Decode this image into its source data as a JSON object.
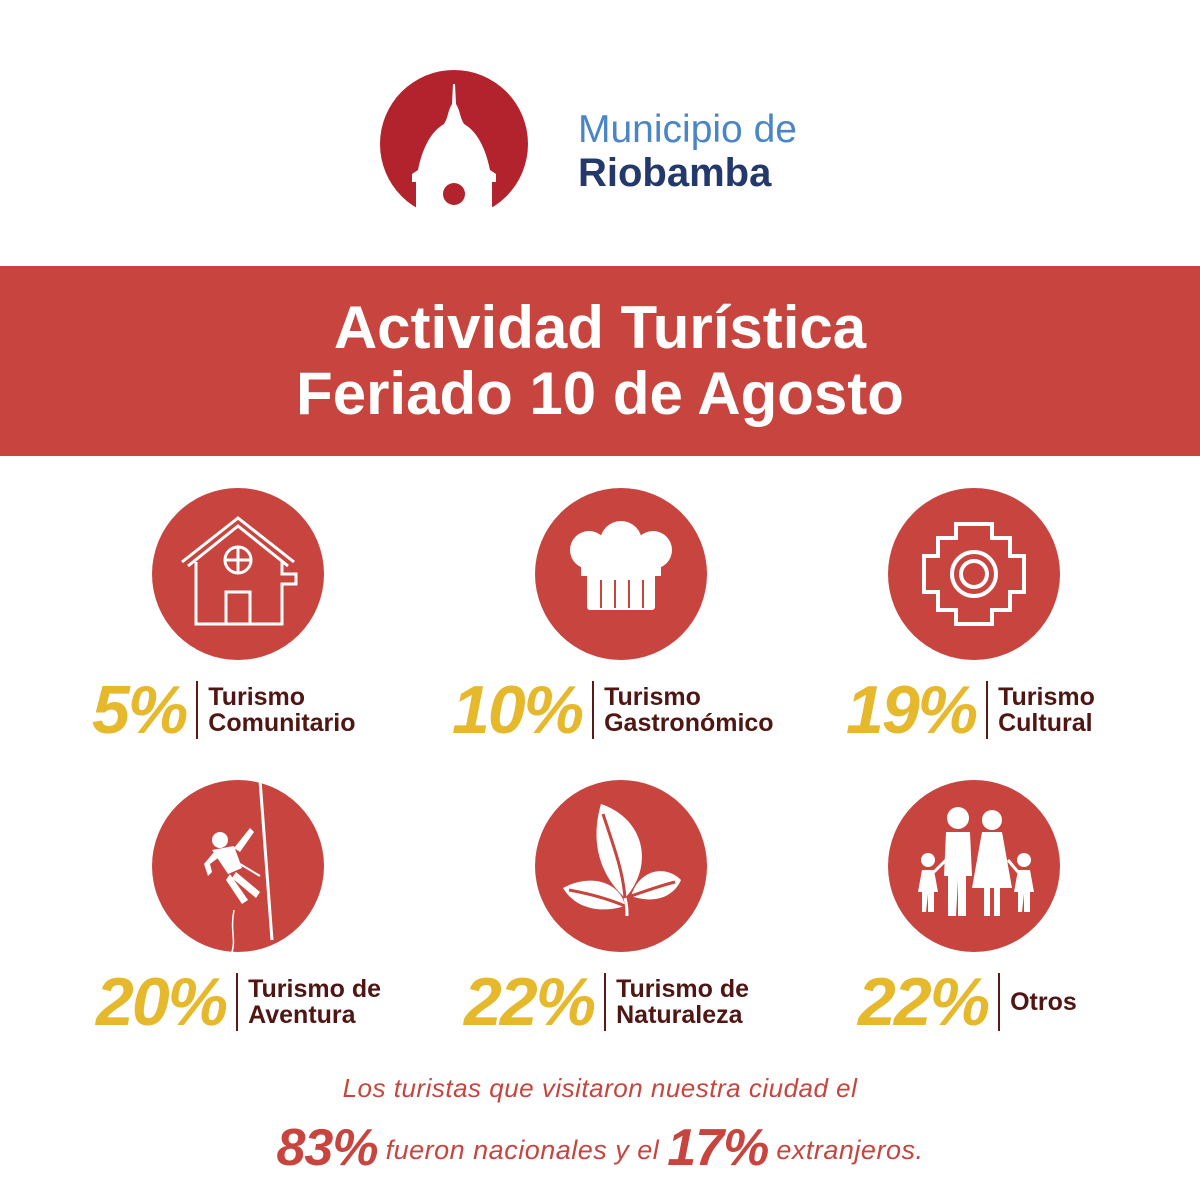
{
  "brand": {
    "line1": "Municipio de",
    "line2": "Riobamba"
  },
  "banner": {
    "line1": "Actividad Turística",
    "line2": "Feriado 10 de Agosto"
  },
  "stats": [
    {
      "percent": "5%",
      "label1": "Turismo",
      "label2": "Comunitario",
      "icon": "house-icon"
    },
    {
      "percent": "10%",
      "label1": "Turismo",
      "label2": "Gastronómico",
      "icon": "chef-hat-icon"
    },
    {
      "percent": "19%",
      "label1": "Turismo",
      "label2": "Cultural",
      "icon": "chakana-icon"
    },
    {
      "percent": "20%",
      "label1": "Turismo de",
      "label2": "Aventura",
      "icon": "climber-icon"
    },
    {
      "percent": "22%",
      "label1": "Turismo de",
      "label2": "Naturaleza",
      "icon": "leaves-icon"
    },
    {
      "percent": "22%",
      "label1": "Otros",
      "icon": "family-icon"
    }
  ],
  "footer": {
    "line1": "Los turistas que visitaron nuestra ciudad el",
    "national_percent": "83%",
    "national_text": "fueron nacionales y el",
    "foreign_percent": "17%",
    "foreign_text": "extranjeros."
  },
  "colors": {
    "primary_red": "#c7453e",
    "gold": "#e6b82c",
    "dark_maroon": "#4f1613",
    "brand_blue": "#4a86c6",
    "brand_navy": "#23396b"
  }
}
